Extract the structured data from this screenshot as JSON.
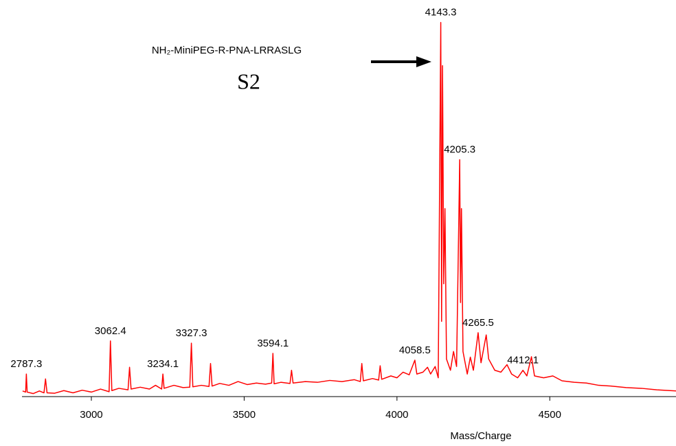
{
  "chart_data": {
    "type": "line",
    "annotations": [
      "NH₂-MiniPEG-R-PNA-LRRASLG",
      "S2"
    ],
    "xlabel": "Mass/Charge",
    "xlim": [
      2773,
      4913
    ],
    "xticks": [
      3000,
      3500,
      4000,
      4500
    ],
    "ylim": [
      0,
      100
    ],
    "series": [
      {
        "color": "#ff0000",
        "x": [
          2775,
          2785,
          2787.3,
          2790,
          2810,
          2830,
          2845,
          2850,
          2855,
          2880,
          2910,
          2940,
          2970,
          3000,
          3030,
          3058,
          3062.4,
          3067,
          3090,
          3120,
          3125,
          3130,
          3160,
          3190,
          3210,
          3230,
          3234.1,
          3238,
          3270,
          3300,
          3322,
          3327.3,
          3332,
          3360,
          3385,
          3390,
          3395,
          3420,
          3450,
          3480,
          3510,
          3540,
          3570,
          3590,
          3594.1,
          3598,
          3620,
          3650,
          3655,
          3660,
          3700,
          3740,
          3780,
          3820,
          3860,
          3880,
          3885,
          3890,
          3920,
          3940,
          3945,
          3950,
          3980,
          4000,
          4020,
          4040,
          4058.5,
          4065,
          4085,
          4100,
          4110,
          4125,
          4135,
          4143.3,
          4146,
          4149,
          4153,
          4157,
          4162,
          4175,
          4185,
          4195,
          4205.3,
          4208,
          4211,
          4216,
          4230,
          4240,
          4250,
          4265.5,
          4275,
          4292,
          4300,
          4320,
          4340,
          4360,
          4375,
          4395,
          4412.1,
          4425,
          4440,
          4450,
          4480,
          4510,
          4540,
          4580,
          4620,
          4660,
          4700,
          4750,
          4800,
          4850,
          4913
        ],
        "values": [
          1.5,
          1.2,
          6,
          1.2,
          0.8,
          1.5,
          1.0,
          4.7,
          1.0,
          0.9,
          1.6,
          1.0,
          1.7,
          1.2,
          2.0,
          1.3,
          14.8,
          1.6,
          2.2,
          1.8,
          7.8,
          2.0,
          2.5,
          2.0,
          3.0,
          2.0,
          6,
          2.2,
          3.0,
          2.4,
          2.5,
          14.2,
          2.6,
          3.0,
          2.7,
          8.8,
          2.8,
          3.5,
          3.0,
          4.0,
          3.2,
          3.6,
          3.3,
          3.6,
          11.5,
          3.4,
          3.8,
          3.5,
          7,
          3.6,
          4.0,
          3.8,
          4.3,
          4.0,
          4.5,
          4.0,
          8.8,
          4.2,
          4.8,
          4.4,
          8.2,
          4.6,
          5.5,
          5.0,
          6.5,
          5.8,
          9.7,
          6,
          6.5,
          7.8,
          6,
          8,
          5,
          99.5,
          20,
          88,
          30,
          50,
          10,
          7,
          12,
          8,
          63,
          25,
          50,
          12,
          6,
          10.5,
          7,
          17,
          9,
          16.4,
          10,
          7,
          6.5,
          8.5,
          6,
          5,
          7,
          5.5,
          10.6,
          5.5,
          5.0,
          5.5,
          4.2,
          3.8,
          3.6,
          3.0,
          2.8,
          2.4,
          2.2,
          1.8,
          1.5
        ]
      }
    ],
    "peak_labels": [
      2787.3,
      3062.4,
      3234.1,
      3327.3,
      3594.1,
      4058.5,
      4143.3,
      4205.3,
      4265.5,
      4412.1
    ]
  }
}
